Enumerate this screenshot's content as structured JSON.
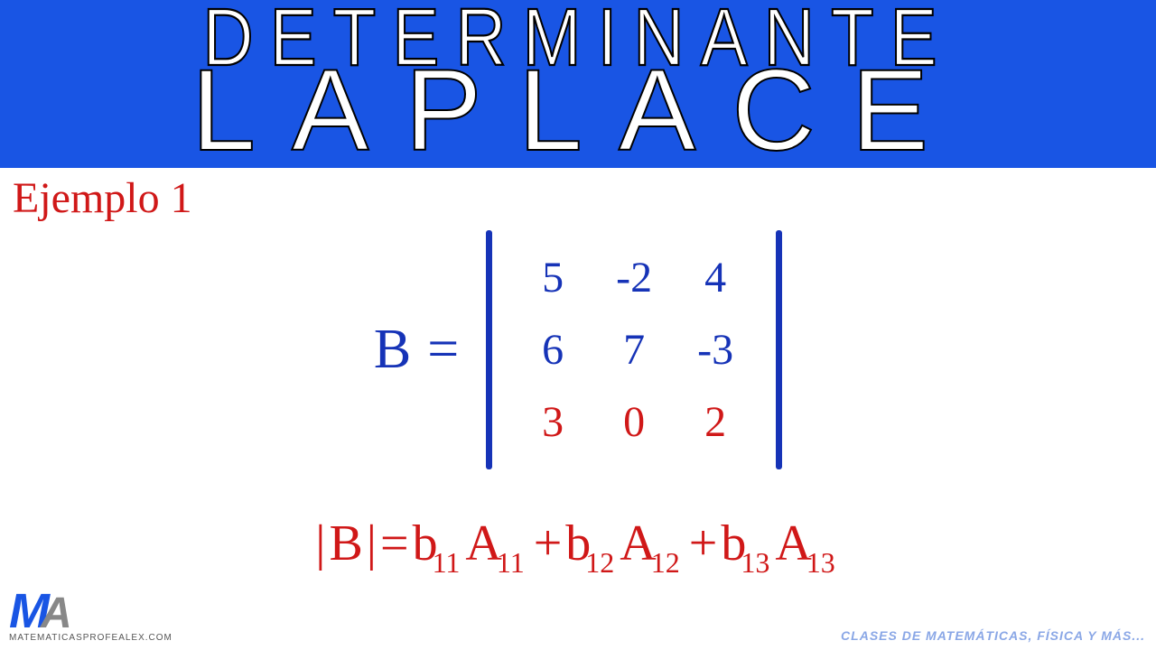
{
  "header": {
    "line1": "DETERMINANTE",
    "line2": "LAPLACE",
    "bg_color": "#1955e4",
    "text_color": "#ffffff",
    "stroke_color": "#000000"
  },
  "example_label": "Ejemplo 1",
  "colors": {
    "blue": "#1633b7",
    "red": "#d01818",
    "background": "#ffffff"
  },
  "matrix": {
    "name": "B",
    "equals": "=",
    "rows": [
      {
        "cells": [
          "5",
          "-2",
          "4"
        ],
        "color": "blue"
      },
      {
        "cells": [
          "6",
          "7",
          "-3"
        ],
        "color": "blue"
      },
      {
        "cells": [
          "3",
          "0",
          "2"
        ],
        "color": "red"
      }
    ]
  },
  "formula": {
    "lhs_open": "|",
    "lhs_var": "B",
    "lhs_close": "|",
    "equals": " = ",
    "terms": [
      {
        "b": "b",
        "bsub": "11",
        "A": "A",
        "Asub": "11"
      },
      {
        "b": "b",
        "bsub": "12",
        "A": "A",
        "Asub": "12"
      },
      {
        "b": "b",
        "bsub": "13",
        "A": "A",
        "Asub": "13"
      }
    ],
    "plus": " + "
  },
  "logo": {
    "m": "M",
    "a": "A",
    "url": "matematicasprofealex.com"
  },
  "footer_right": "clases de matemáticas, física y más..."
}
